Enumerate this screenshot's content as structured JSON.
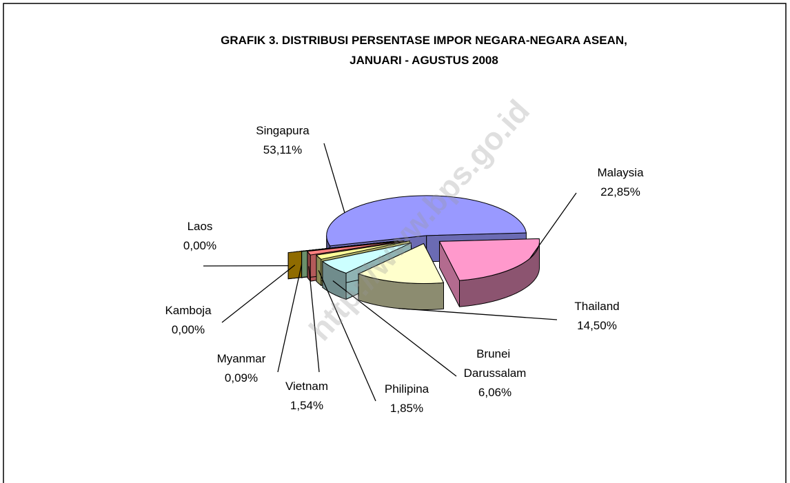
{
  "chart_data": {
    "type": "pie3d",
    "title": "GRAFIK 3. DISTRIBUSI PERSENTASE IMPOR NEGARA-NEGARA ASEAN,",
    "subtitle": "JANUARI - AGUSTUS  2008",
    "watermark": "http://www.bps.go.id",
    "categories": [
      "Singapura",
      "Malaysia",
      "Thailand",
      "Brunei Darussalam",
      "Philipina",
      "Vietnam",
      "Myanmar",
      "Kamboja",
      "Laos"
    ],
    "values": [
      53.11,
      22.85,
      14.5,
      6.06,
      1.85,
      1.54,
      0.09,
      0,
      0
    ],
    "value_labels": [
      "53,11%",
      "22,85%",
      "14,50%",
      "6,06%",
      "1,85%",
      "1,54%",
      "0,09%",
      "0,00%",
      "0,00%"
    ],
    "colors": [
      "#9999ff",
      "#ff99cc",
      "#ffffcc",
      "#ccffff",
      "#ffff99",
      "#ff8080",
      "#99cc99",
      "#669999",
      "#cc9900"
    ]
  }
}
